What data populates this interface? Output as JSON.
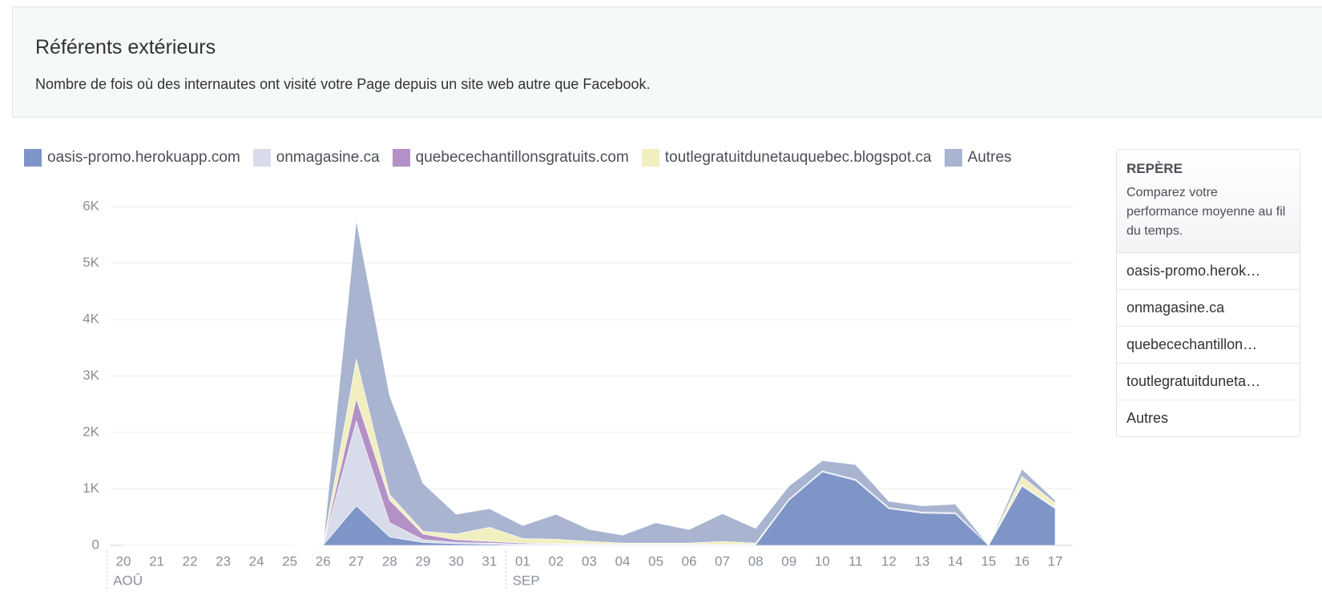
{
  "header": {
    "title": "Référents extérieurs",
    "subtitle": "Nombre de fois où des internautes ont visité votre Page depuis un site web autre que Facebook."
  },
  "chart_data": {
    "type": "stacked_area",
    "categories": [
      "20",
      "21",
      "22",
      "23",
      "24",
      "25",
      "26",
      "27",
      "28",
      "29",
      "30",
      "31",
      "01",
      "02",
      "03",
      "04",
      "05",
      "06",
      "07",
      "08",
      "09",
      "10",
      "11",
      "12",
      "13",
      "14",
      "15",
      "16",
      "17"
    ],
    "month_labels": [
      "AOÛ",
      "SEP"
    ],
    "series": [
      {
        "name": "oasis-promo.herokuapp.com",
        "color": "#7f95c8",
        "values": [
          0,
          0,
          0,
          0,
          0,
          0,
          0,
          700,
          150,
          50,
          30,
          20,
          10,
          10,
          10,
          10,
          10,
          10,
          10,
          10,
          800,
          1300,
          1150,
          650,
          570,
          560,
          0,
          1050,
          650
        ]
      },
      {
        "name": "onmagasine.ca",
        "color": "#d8dcea",
        "values": [
          0,
          0,
          0,
          0,
          0,
          0,
          0,
          1500,
          250,
          50,
          20,
          20,
          10,
          10,
          10,
          10,
          10,
          10,
          10,
          10,
          20,
          20,
          20,
          20,
          20,
          20,
          0,
          20,
          20
        ]
      },
      {
        "name": "quebecechantillonsgratuits.com",
        "color": "#b391c7",
        "values": [
          0,
          0,
          0,
          0,
          0,
          0,
          0,
          400,
          400,
          100,
          50,
          30,
          20,
          10,
          10,
          0,
          0,
          0,
          0,
          0,
          0,
          0,
          0,
          0,
          0,
          0,
          0,
          0,
          0
        ]
      },
      {
        "name": "toutlegratuitdunetauquebec.blogspot.ca",
        "color": "#f1efc0",
        "values": [
          0,
          0,
          0,
          0,
          0,
          0,
          0,
          700,
          100,
          50,
          100,
          250,
          80,
          80,
          40,
          20,
          20,
          20,
          50,
          20,
          0,
          0,
          0,
          0,
          0,
          0,
          0,
          150,
          80
        ]
      },
      {
        "name": "Autres",
        "color": "#a8b4d0",
        "values": [
          10,
          10,
          10,
          10,
          10,
          10,
          0,
          2450,
          1750,
          850,
          350,
          330,
          230,
          440,
          210,
          140,
          360,
          240,
          490,
          260,
          230,
          180,
          260,
          110,
          110,
          150,
          0,
          130,
          50
        ]
      }
    ],
    "ylim": [
      0,
      6000
    ],
    "yticks": [
      0,
      {
        "value": 1000,
        "label": "1K"
      },
      {
        "value": 2000,
        "label": "2K"
      },
      {
        "value": 3000,
        "label": "3K"
      },
      {
        "value": 4000,
        "label": "4K"
      },
      {
        "value": 5000,
        "label": "5K"
      },
      {
        "value": 6000,
        "label": "6K"
      }
    ],
    "grid": true
  },
  "sidebar": {
    "title": "REPÈRE",
    "description": "Comparez votre performance moyenne au fil du temps.",
    "items": [
      "oasis-promo.herok…",
      "onmagasine.ca",
      "quebecechantillon…",
      "toutlegratuitduneta…",
      "Autres"
    ]
  }
}
